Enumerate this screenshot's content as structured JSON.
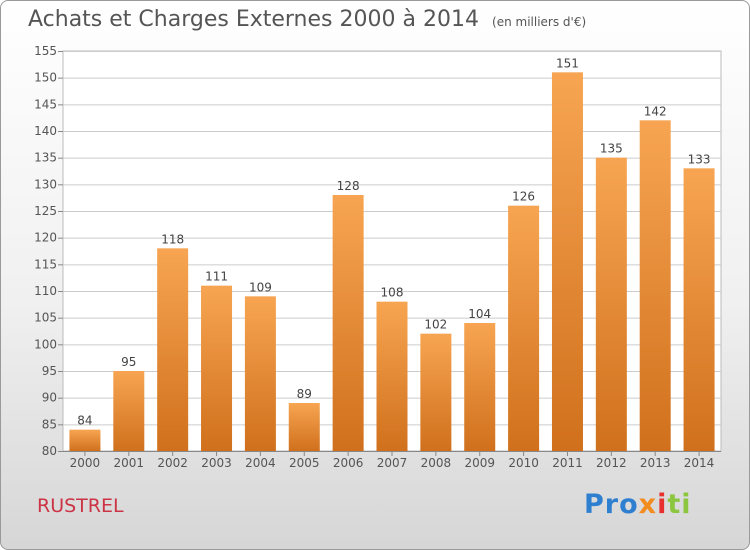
{
  "header": {
    "title": "Achats et Charges Externes 2000 à 2014",
    "unit": "(en milliers d'€)"
  },
  "footer": {
    "place": "RUSTREL",
    "logo": [
      "Pro",
      "x",
      "i",
      "ti"
    ]
  },
  "colors": {
    "bar_top": "#f7a552",
    "bar_bottom": "#d0701c",
    "grid": "#cccccc",
    "axis": "#555555"
  },
  "chart_data": {
    "type": "bar",
    "title": "Achats et Charges Externes 2000 à 2014",
    "categories": [
      "2000",
      "2001",
      "2002",
      "2003",
      "2004",
      "2005",
      "2006",
      "2007",
      "2008",
      "2009",
      "2010",
      "2011",
      "2012",
      "2013",
      "2014"
    ],
    "values": [
      84,
      95,
      118,
      111,
      109,
      89,
      128,
      108,
      102,
      104,
      126,
      151,
      135,
      142,
      133
    ],
    "ylim": [
      80,
      155
    ],
    "yticks": [
      80,
      85,
      90,
      95,
      100,
      105,
      110,
      115,
      120,
      125,
      130,
      135,
      140,
      145,
      150,
      155
    ],
    "grid": true,
    "data_labels": true
  }
}
